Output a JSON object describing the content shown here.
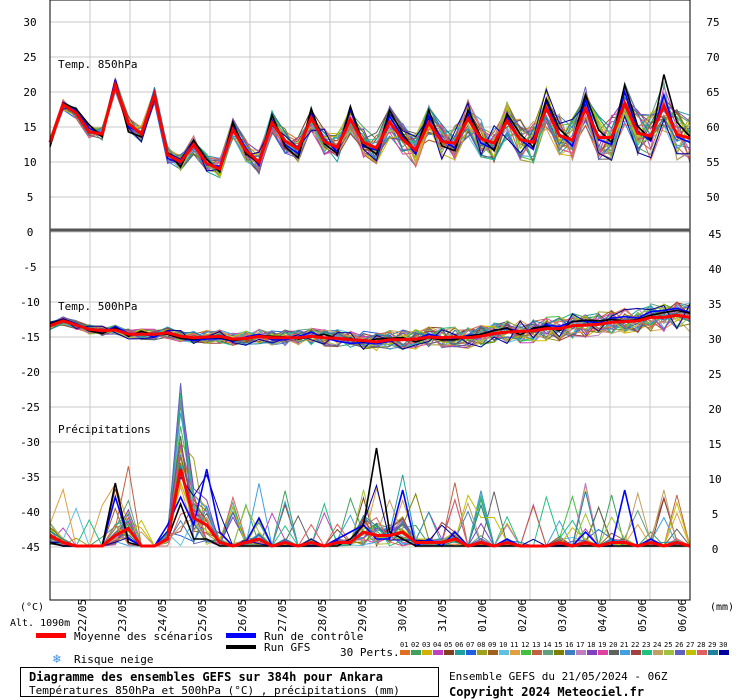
{
  "chart_data": {
    "type": "line",
    "title": "Diagramme des ensembles GEFS sur 384h pour Ankara",
    "subtitle": "Températures 850hPa et 500hPa (°C) , précipitations (mm)",
    "altitude": "Alt. 1090m",
    "left_axis_unit": "(°C)",
    "right_axis_unit": "(mm)",
    "left_ticks": [
      "30",
      "25",
      "20",
      "15",
      "10",
      "5",
      "0",
      "-5",
      "-10",
      "-15",
      "-20",
      "-25",
      "-30",
      "-35",
      "-40",
      "-45"
    ],
    "right_ticks_upper": [
      "75",
      "70",
      "65",
      "60",
      "55",
      "50"
    ],
    "right_ticks_lower": [
      "45",
      "40",
      "35",
      "30",
      "25",
      "20",
      "15",
      "10",
      "5",
      "0"
    ],
    "x_labels": [
      "22/05",
      "23/05",
      "24/05",
      "25/05",
      "26/05",
      "27/05",
      "28/05",
      "29/05",
      "30/05",
      "31/05",
      "01/06",
      "02/06",
      "03/06",
      "04/06",
      "05/06",
      "06/06"
    ],
    "panel_labels": {
      "t850": "Temp. 850hPa",
      "t500": "Temp. 500hPa",
      "precip": "Précipitations"
    },
    "series": [
      {
        "name": "Moyenne des scénarios",
        "color": "#ff0000",
        "t850": [
          12.8,
          18.2,
          17,
          14.3,
          14,
          21,
          15.5,
          14,
          19.6,
          11,
          10,
          12.5,
          9.8,
          9,
          14.6,
          11.6,
          10,
          15.6,
          13,
          11.9,
          16.3,
          12.9,
          12.1,
          16.1,
          12.8,
          12,
          15.7,
          13.2,
          11.7,
          15.6,
          12.9,
          12.7,
          16.2,
          13.3,
          12.7,
          15.9,
          13.2,
          12.8,
          17.7,
          13.8,
          13.1,
          17.6,
          13.5,
          13.5,
          18.4,
          14.1,
          13.7,
          18,
          13.9,
          13.4
        ],
        "t500": [
          -13.4,
          -12.7,
          -13.3,
          -13.9,
          -14.1,
          -14,
          -14.6,
          -14.6,
          -14.6,
          -14.4,
          -14.9,
          -15.1,
          -15,
          -14.9,
          -15.3,
          -15.2,
          -14.9,
          -15.1,
          -15.1,
          -15.1,
          -14.9,
          -15.1,
          -15.2,
          -15.4,
          -15.5,
          -15.7,
          -15.4,
          -15.4,
          -15.3,
          -15,
          -15.1,
          -15,
          -15.1,
          -14.9,
          -14.5,
          -14.3,
          -14.2,
          -14.1,
          -13.8,
          -13.8,
          -13.4,
          -13.3,
          -13.2,
          -12.9,
          -12.8,
          -12.7,
          -12.2,
          -12.2,
          -11.9,
          -12.2
        ],
        "precip_mm": [
          1.5,
          0.5,
          0,
          0,
          0,
          1.5,
          2.5,
          0,
          0,
          1,
          11,
          4,
          3,
          0.5,
          0,
          0.5,
          1,
          0,
          0.5,
          0,
          0.5,
          0,
          0.5,
          0.5,
          2,
          1.5,
          1.5,
          2,
          0.5,
          0.5,
          0.5,
          1,
          0,
          0.5,
          0,
          0.5,
          0,
          0,
          0,
          0.5,
          0,
          0.5,
          0,
          0.5,
          0.5,
          0,
          0.5,
          0,
          0.5,
          0
        ]
      },
      {
        "name": "Run de contrôle",
        "color": "#0000ff",
        "t850": [
          12.5,
          18.5,
          17.4,
          14.8,
          14,
          21.8,
          15,
          14.2,
          20,
          10.5,
          9.8,
          12.9,
          9.6,
          9.4,
          15.2,
          12,
          9.5,
          16,
          12.5,
          11.2,
          17,
          13.2,
          11.5,
          17.5,
          12.2,
          11.7,
          16.5,
          13.6,
          11.1,
          16.6,
          13.2,
          12,
          16.8,
          12.7,
          11.8,
          16.5,
          13.2,
          11.8,
          18.7,
          14,
          12.3,
          18.9,
          13.2,
          12.5,
          20,
          14.4,
          13,
          19.6,
          13.6,
          12.8
        ],
        "t500": [
          -13.2,
          -12.4,
          -13.1,
          -14,
          -14.4,
          -13.5,
          -14.5,
          -14.5,
          -15,
          -14.1,
          -15.2,
          -15.5,
          -15.3,
          -15.2,
          -15.6,
          -15,
          -14.6,
          -15.4,
          -15.4,
          -15,
          -14.3,
          -15.1,
          -15.6,
          -15.9,
          -15.8,
          -16,
          -15.6,
          -15.2,
          -15.3,
          -14.6,
          -15,
          -15.2,
          -14.8,
          -14.6,
          -14,
          -13.8,
          -14.2,
          -13.9,
          -13.3,
          -13.5,
          -12.8,
          -12.7,
          -13,
          -12.3,
          -12.1,
          -12.3,
          -11.4,
          -11.2,
          -10.9,
          -11.5
        ],
        "precip_mm": [
          0.5,
          0,
          0,
          0,
          0,
          7,
          1,
          0,
          0,
          3,
          7,
          3,
          11,
          2,
          0,
          0.5,
          4,
          0,
          0,
          0,
          0,
          0,
          1,
          2,
          3,
          1,
          1,
          8,
          0,
          1,
          0,
          2,
          0,
          0,
          0,
          1,
          0,
          0,
          0,
          0,
          0,
          2,
          0,
          0,
          8,
          0,
          1,
          0,
          0.5,
          0
        ]
      },
      {
        "name": "Run GFS",
        "color": "#000000",
        "t850": [
          12.2,
          18.4,
          17.6,
          15.3,
          13.6,
          21.5,
          14.3,
          13.6,
          19.5,
          11.4,
          9.3,
          13.1,
          10.4,
          8.6,
          15.7,
          11.2,
          9.8,
          16.7,
          12.2,
          10.6,
          17.6,
          12.6,
          11.2,
          17.9,
          12.5,
          11.1,
          17.4,
          14,
          11.5,
          17.4,
          12.3,
          11.6,
          17.4,
          13.6,
          11.6,
          16.9,
          14,
          12.1,
          19,
          14.7,
          13,
          19.6,
          14.6,
          12.8,
          21,
          15.1,
          13.2,
          22.5,
          15.7,
          13.6
        ],
        "t500": [
          -13.1,
          -12.5,
          -13.2,
          -14.1,
          -14.5,
          -13.7,
          -14.9,
          -14.2,
          -14.7,
          -14.6,
          -15.2,
          -15.3,
          -15.1,
          -15.1,
          -15.5,
          -15.3,
          -14.8,
          -14.9,
          -15,
          -15.3,
          -15,
          -14.6,
          -15.2,
          -15.2,
          -15.7,
          -15.3,
          -15.2,
          -15.1,
          -15.7,
          -15.1,
          -15.4,
          -15.4,
          -14.9,
          -14.6,
          -14.1,
          -13.7,
          -14.7,
          -13.7,
          -13.5,
          -14.1,
          -12.8,
          -12.6,
          -12.7,
          -12.5,
          -12.7,
          -12.5,
          -11.9,
          -11.5,
          -11.2,
          -11.6
        ],
        "precip_mm": [
          0.5,
          0,
          0,
          0,
          0,
          9,
          0.5,
          0,
          0,
          1,
          6,
          1,
          1,
          0,
          0,
          0,
          0,
          0,
          0,
          0,
          0,
          0,
          0,
          1,
          3,
          14,
          2,
          1,
          0,
          0,
          0,
          0,
          0,
          0,
          0,
          0,
          0,
          0,
          0,
          0,
          0,
          0,
          0,
          0,
          0,
          0,
          0,
          0,
          0,
          0
        ]
      }
    ],
    "ensemble_members": 30
  },
  "legend": {
    "mean": "Moyenne des scénarios",
    "control": "Run de contrôle",
    "gfs": "Run GFS",
    "snow_risk": "Risque neige",
    "perts_label": "30 Perts.",
    "pert_numbers": [
      "01",
      "02",
      "03",
      "04",
      "05",
      "06",
      "07",
      "08",
      "09",
      "10",
      "11",
      "12",
      "13",
      "14",
      "15",
      "16",
      "17",
      "18",
      "19",
      "20",
      "21",
      "22",
      "23",
      "24",
      "25",
      "26",
      "27",
      "28",
      "29",
      "30"
    ],
    "pert_colors": [
      "#e07020",
      "#40a060",
      "#d0b000",
      "#c040c0",
      "#804020",
      "#20a0a0",
      "#2060e0",
      "#a0a020",
      "#a06020",
      "#60c0e0",
      "#e0a040",
      "#40c040",
      "#c06040",
      "#60a080",
      "#808000",
      "#4080c0",
      "#c080c0",
      "#8040c0",
      "#e040a0",
      "#606060",
      "#40a0e0",
      "#a04040",
      "#20c080",
      "#c0a060",
      "#a0c040",
      "#6060c0",
      "#c0c000",
      "#e06060",
      "#2080a0",
      "#0000a0"
    ],
    "mean_color": "#ff0000",
    "control_color": "#0000ff",
    "gfs_color": "#000000",
    "snow_icon_color": "#3a8ee8"
  },
  "footer": {
    "title": "Diagramme des ensembles GEFS sur 384h pour Ankara",
    "subtitle": "Températures 850hPa et 500hPa (°C) , précipitations (mm)",
    "run_info": "Ensemble GEFS du 21/05/2024 - 06Z",
    "copyright": "Copyright 2024 Meteociel.fr"
  }
}
